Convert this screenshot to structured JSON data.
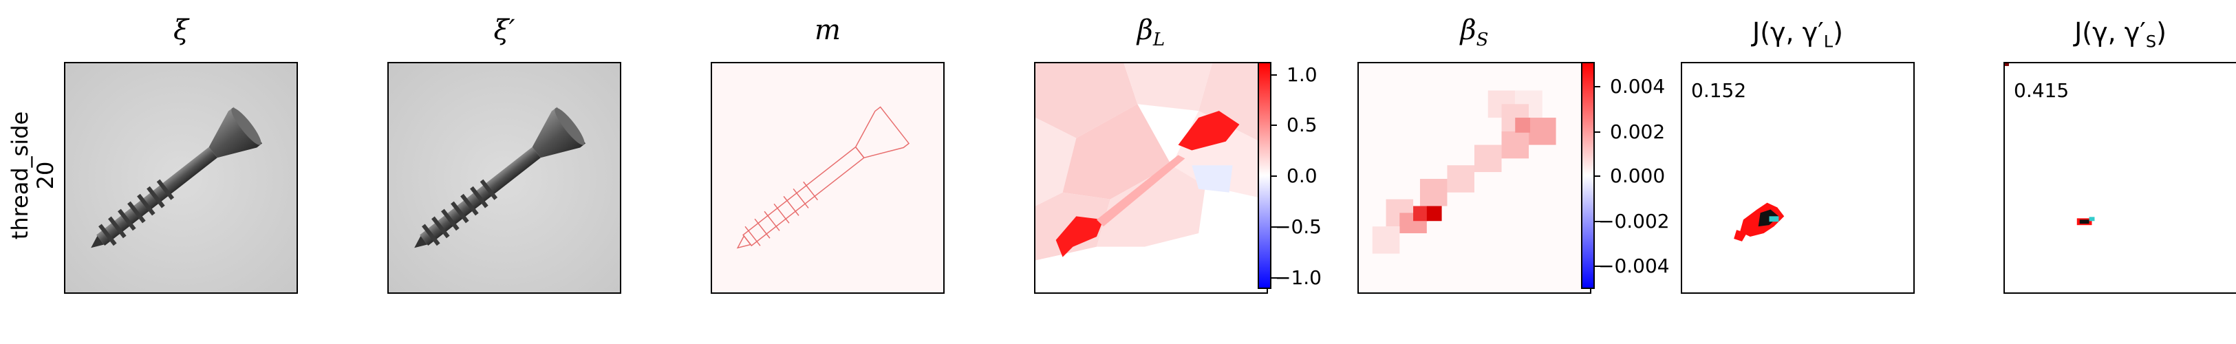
{
  "row_label": {
    "line1": "thread_side",
    "line2": "20"
  },
  "panels": {
    "xi": {
      "title": "ξ"
    },
    "xi_prime": {
      "title": "ξ′"
    },
    "m": {
      "title": "m"
    },
    "beta_l": {
      "title": "β",
      "sub": "L"
    },
    "beta_s": {
      "title": "β",
      "sub": "S"
    },
    "j_l": {
      "title": "J(γ, γ′",
      "sub": "L",
      "tail": ")",
      "score": "0.152"
    },
    "j_s": {
      "title": "J(γ, γ′",
      "sub": "S",
      "tail": ")",
      "score": "0.415"
    }
  },
  "colorbars": {
    "beta_l": {
      "ticks": [
        "1.0",
        "0.5",
        "0.0",
        "−0.5",
        "−1.0"
      ],
      "range": [
        -1.1,
        1.1
      ]
    },
    "beta_s": {
      "ticks": [
        "0.004",
        "0.002",
        "0.000",
        "−0.002",
        "−0.004"
      ],
      "range": [
        -0.005,
        0.005
      ]
    }
  },
  "colors": {
    "positive": "#ff0000",
    "negative": "#0000ff",
    "neutral": "#ffffff"
  }
}
